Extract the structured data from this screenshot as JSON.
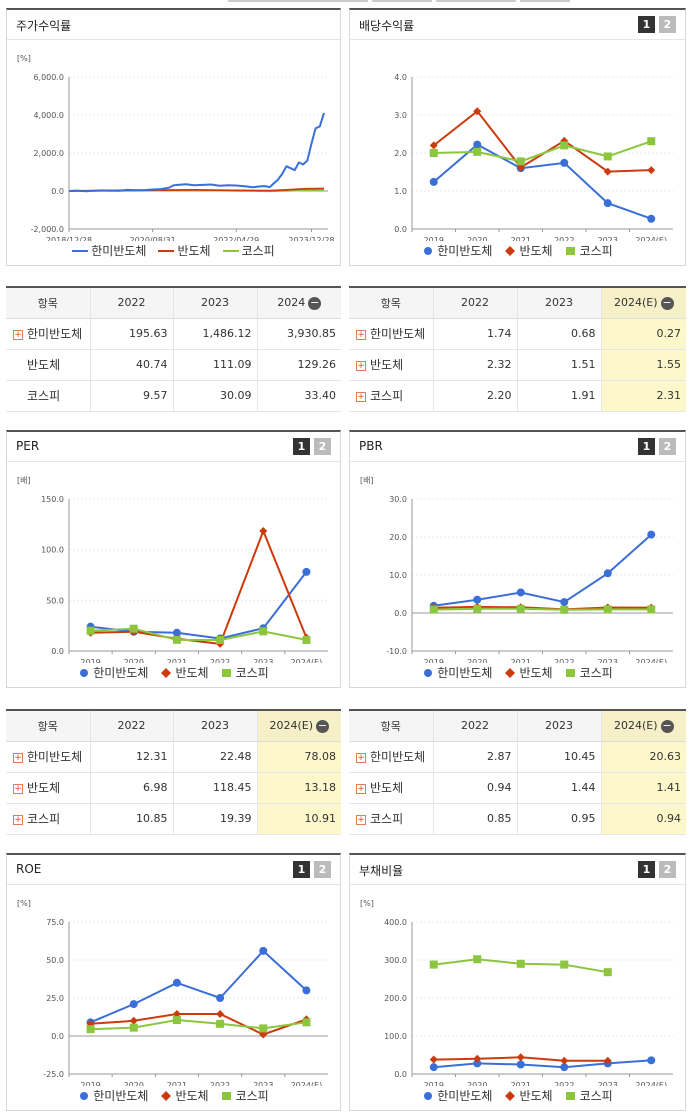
{
  "colors": {
    "hanmi": "#3a6fd8",
    "semi": "#cc3b0b",
    "kospi": "#8cc63e"
  },
  "legend": [
    "한미반도체",
    "반도체",
    "코스피"
  ],
  "table_headers": {
    "item": "항목",
    "stock": [
      "2022",
      "2023",
      "2024"
    ],
    "est": [
      "2022",
      "2023",
      "2024(E)"
    ]
  },
  "panels": {
    "stock_return": {
      "title": "주가수익률"
    },
    "dividend": {
      "title": "배당수익률",
      "btn1": "1",
      "btn2": "2"
    },
    "per": {
      "title": "PER",
      "btn1": "1",
      "btn2": "2"
    },
    "pbr": {
      "title": "PBR",
      "btn1": "1",
      "btn2": "2"
    },
    "roe": {
      "title": "ROE",
      "btn1": "1",
      "btn2": "2"
    },
    "debt": {
      "title": "부채비율",
      "btn1": "1",
      "btn2": "2"
    }
  },
  "tables": {
    "stock_return": [
      {
        "name": "한미반도체",
        "plus": true,
        "values": [
          "195.63",
          "1,486.12",
          "3,930.85"
        ]
      },
      {
        "name": "반도체",
        "plus": false,
        "values": [
          "40.74",
          "111.09",
          "129.26"
        ]
      },
      {
        "name": "코스피",
        "plus": false,
        "values": [
          "9.57",
          "30.09",
          "33.40"
        ]
      }
    ],
    "dividend": [
      {
        "name": "한미반도체",
        "plus": true,
        "values": [
          "1.74",
          "0.68",
          "0.27"
        ]
      },
      {
        "name": "반도체",
        "plus": true,
        "values": [
          "2.32",
          "1.51",
          "1.55"
        ]
      },
      {
        "name": "코스피",
        "plus": true,
        "values": [
          "2.20",
          "1.91",
          "2.31"
        ]
      }
    ],
    "per": [
      {
        "name": "한미반도체",
        "plus": true,
        "values": [
          "12.31",
          "22.48",
          "78.08"
        ]
      },
      {
        "name": "반도체",
        "plus": true,
        "values": [
          "6.98",
          "118.45",
          "13.18"
        ]
      },
      {
        "name": "코스피",
        "plus": true,
        "values": [
          "10.85",
          "19.39",
          "10.91"
        ]
      }
    ],
    "pbr": [
      {
        "name": "한미반도체",
        "plus": true,
        "values": [
          "2.87",
          "10.45",
          "20.63"
        ]
      },
      {
        "name": "반도체",
        "plus": true,
        "values": [
          "0.94",
          "1.44",
          "1.41"
        ]
      },
      {
        "name": "코스피",
        "plus": true,
        "values": [
          "0.85",
          "0.95",
          "0.94"
        ]
      }
    ]
  },
  "chart_data": [
    {
      "id": "stock_return",
      "type": "line",
      "unit": "[%]",
      "ylim": [
        -2000,
        6000
      ],
      "yticks": [
        -2000,
        0,
        2000,
        4000,
        6000
      ],
      "ytick_labels": [
        "-2,000.0",
        "0.0",
        "2,000.0",
        "4,000.0",
        "6,000.0"
      ],
      "xlim": [
        0,
        61
      ],
      "xtick_pos": [
        0,
        20,
        40,
        58
      ],
      "xticks": [
        "2018/12/28",
        "2020/08/31",
        "2022/04/29",
        "2023/12/28"
      ],
      "series": [
        {
          "name": "한미반도체",
          "color": "#3a6fd8",
          "x": [
            0,
            2,
            4,
            6,
            8,
            10,
            12,
            14,
            16,
            18,
            20,
            22,
            24,
            25,
            26,
            28,
            30,
            32,
            34,
            36,
            38,
            40,
            42,
            44,
            46,
            47,
            48,
            49,
            50,
            51,
            52,
            53,
            54,
            55,
            56,
            57,
            58,
            59,
            60,
            61
          ],
          "values": [
            0,
            20,
            -10,
            10,
            30,
            20,
            10,
            60,
            40,
            50,
            80,
            100,
            180,
            300,
            320,
            350,
            300,
            320,
            340,
            280,
            300,
            290,
            250,
            200,
            250,
            260,
            200,
            400,
            600,
            900,
            1300,
            1200,
            1100,
            1500,
            1400,
            1600,
            2500,
            3300,
            3400,
            4100
          ]
        },
        {
          "name": "반도체",
          "color": "#cc3b0b",
          "x": [
            0,
            10,
            20,
            30,
            40,
            48,
            52,
            56,
            61
          ],
          "values": [
            0,
            30,
            40,
            60,
            30,
            20,
            60,
            110,
            130
          ]
        },
        {
          "name": "코스피",
          "color": "#8cc63e",
          "x": [
            0,
            10,
            20,
            30,
            40,
            48,
            52,
            56,
            61
          ],
          "values": [
            0,
            10,
            20,
            40,
            10,
            -10,
            10,
            30,
            40
          ]
        }
      ]
    },
    {
      "id": "dividend",
      "type": "line",
      "ylim": [
        0,
        4
      ],
      "yticks": [
        0,
        1,
        2,
        3,
        4
      ],
      "ytick_labels": [
        "0.0",
        "1.0",
        "2.0",
        "3.0",
        "4.0"
      ],
      "categories": [
        "2019",
        "2020",
        "2021",
        "2022",
        "2023",
        "2024(E)"
      ],
      "series": [
        {
          "name": "한미반도체",
          "color": "#3a6fd8",
          "values": [
            1.24,
            2.22,
            1.6,
            1.74,
            0.68,
            0.27
          ]
        },
        {
          "name": "반도체",
          "color": "#cc3b0b",
          "values": [
            2.2,
            3.1,
            1.62,
            2.32,
            1.51,
            1.55
          ]
        },
        {
          "name": "코스피",
          "color": "#8cc63e",
          "values": [
            2.0,
            2.03,
            1.78,
            2.2,
            1.91,
            2.31
          ]
        }
      ]
    },
    {
      "id": "per",
      "type": "line",
      "unit": "[배]",
      "ylim": [
        0,
        150
      ],
      "yticks": [
        0,
        50,
        100,
        150
      ],
      "ytick_labels": [
        "0.0",
        "50.0",
        "100.0",
        "150.0"
      ],
      "categories": [
        "2019",
        "2020",
        "2021",
        "2022",
        "2023",
        "2024(E)"
      ],
      "series": [
        {
          "name": "한미반도체",
          "color": "#3a6fd8",
          "values": [
            24,
            19,
            18,
            12.31,
            22.48,
            78.08
          ]
        },
        {
          "name": "반도체",
          "color": "#cc3b0b",
          "values": [
            18,
            19,
            12,
            6.98,
            118.45,
            13.18
          ]
        },
        {
          "name": "코스피",
          "color": "#8cc63e",
          "values": [
            20,
            22,
            11,
            10.85,
            19.39,
            10.91
          ]
        }
      ]
    },
    {
      "id": "pbr",
      "type": "line",
      "unit": "[배]",
      "ylim": [
        -10,
        30
      ],
      "yticks": [
        -10,
        0,
        10,
        20,
        30
      ],
      "ytick_labels": [
        "-10.0",
        "0.0",
        "10.0",
        "20.0",
        "30.0"
      ],
      "categories": [
        "2019",
        "2020",
        "2021",
        "2022",
        "2023",
        "2024(E)"
      ],
      "series": [
        {
          "name": "한미반도체",
          "color": "#3a6fd8",
          "values": [
            1.9,
            3.5,
            5.4,
            2.87,
            10.45,
            20.63
          ]
        },
        {
          "name": "반도체",
          "color": "#cc3b0b",
          "values": [
            1.4,
            1.6,
            1.5,
            0.94,
            1.44,
            1.41
          ]
        },
        {
          "name": "코스피",
          "color": "#8cc63e",
          "values": [
            0.9,
            1.1,
            1.1,
            0.85,
            0.95,
            0.94
          ]
        }
      ]
    },
    {
      "id": "roe",
      "type": "line",
      "unit": "[%]",
      "ylim": [
        -25,
        75
      ],
      "yticks": [
        -25,
        0,
        25,
        50,
        75
      ],
      "ytick_labels": [
        "-25.0",
        "0.0",
        "25.0",
        "50.0",
        "75.0"
      ],
      "categories": [
        "2019",
        "2020",
        "2021",
        "2022",
        "2023",
        "2024(E)"
      ],
      "series": [
        {
          "name": "한미반도체",
          "color": "#3a6fd8",
          "values": [
            9,
            21,
            35,
            25,
            56,
            30
          ]
        },
        {
          "name": "반도체",
          "color": "#cc3b0b",
          "values": [
            8,
            10,
            14.5,
            14.5,
            1,
            11
          ]
        },
        {
          "name": "코스피",
          "color": "#8cc63e",
          "values": [
            4.5,
            5.5,
            10.5,
            8,
            5,
            9
          ]
        }
      ]
    },
    {
      "id": "debt",
      "type": "line",
      "unit": "[%]",
      "ylim": [
        0,
        400
      ],
      "yticks": [
        0,
        100,
        200,
        300,
        400
      ],
      "ytick_labels": [
        "0.0",
        "100.0",
        "200.0",
        "300.0",
        "400.0"
      ],
      "categories": [
        "2019",
        "2020",
        "2021",
        "2022",
        "2023",
        "2024(E)"
      ],
      "series": [
        {
          "name": "한미반도체",
          "color": "#3a6fd8",
          "values": [
            18,
            28,
            25,
            18,
            28,
            36
          ]
        },
        {
          "name": "반도체",
          "color": "#cc3b0b",
          "values": [
            38,
            40,
            44,
            35,
            35,
            null
          ]
        },
        {
          "name": "코스피",
          "color": "#8cc63e",
          "values": [
            288,
            302,
            290,
            288,
            268,
            null
          ]
        }
      ]
    }
  ]
}
